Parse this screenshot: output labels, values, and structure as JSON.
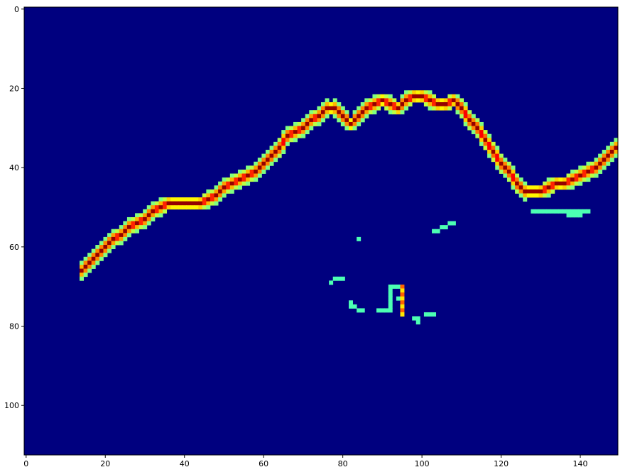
{
  "chart_data": {
    "type": "heatmap",
    "colormap": "jet",
    "background_color": "#00007f",
    "x_range": [
      -0.5,
      149.5
    ],
    "y_range": [
      112.5,
      -0.5
    ],
    "y_inverted": true,
    "x_ticks": [
      0,
      20,
      40,
      60,
      80,
      100,
      120,
      140
    ],
    "y_ticks": [
      0,
      20,
      40,
      60,
      80,
      100
    ],
    "x_tick_labels": [
      "0",
      "20",
      "40",
      "60",
      "80",
      "100",
      "120",
      "140"
    ],
    "y_tick_labels": [
      "0",
      "20",
      "40",
      "60",
      "80",
      "100"
    ],
    "grid": false,
    "colorbar": false,
    "main_ridge": [
      [
        14,
        66
      ],
      [
        16,
        64
      ],
      [
        18,
        62
      ],
      [
        20,
        60
      ],
      [
        22,
        58
      ],
      [
        24,
        57
      ],
      [
        26,
        55
      ],
      [
        28,
        54
      ],
      [
        30,
        53
      ],
      [
        32,
        51
      ],
      [
        34,
        50
      ],
      [
        36,
        49
      ],
      [
        38,
        49
      ],
      [
        40,
        49
      ],
      [
        42,
        49
      ],
      [
        44,
        49
      ],
      [
        46,
        48
      ],
      [
        48,
        47
      ],
      [
        50,
        45
      ],
      [
        52,
        44
      ],
      [
        54,
        43
      ],
      [
        56,
        42
      ],
      [
        58,
        41
      ],
      [
        60,
        39
      ],
      [
        62,
        37
      ],
      [
        64,
        35
      ],
      [
        66,
        32
      ],
      [
        68,
        31
      ],
      [
        70,
        30
      ],
      [
        72,
        28
      ],
      [
        74,
        27
      ],
      [
        76,
        25
      ],
      [
        78,
        25
      ],
      [
        80,
        27
      ],
      [
        82,
        29
      ],
      [
        84,
        27
      ],
      [
        86,
        25
      ],
      [
        88,
        24
      ],
      [
        90,
        23
      ],
      [
        92,
        24
      ],
      [
        94,
        25
      ],
      [
        96,
        23
      ],
      [
        98,
        22
      ],
      [
        100,
        22
      ],
      [
        102,
        23
      ],
      [
        104,
        24
      ],
      [
        106,
        24
      ],
      [
        108,
        23
      ],
      [
        110,
        25
      ],
      [
        112,
        28
      ],
      [
        114,
        30
      ],
      [
        116,
        33
      ],
      [
        118,
        36
      ],
      [
        120,
        39
      ],
      [
        122,
        41
      ],
      [
        124,
        44
      ],
      [
        126,
        46
      ],
      [
        128,
        46
      ],
      [
        130,
        46
      ],
      [
        132,
        45
      ],
      [
        134,
        44
      ],
      [
        136,
        44
      ],
      [
        138,
        43
      ],
      [
        140,
        42
      ],
      [
        142,
        41
      ],
      [
        144,
        40
      ],
      [
        146,
        38
      ],
      [
        148,
        36
      ],
      [
        149,
        35
      ]
    ],
    "fragments": [
      {
        "x": 128,
        "y": 51,
        "w": 9,
        "h": 1
      },
      {
        "x": 137,
        "y": 51,
        "w": 4,
        "h": 2
      },
      {
        "x": 141,
        "y": 51,
        "w": 2,
        "h": 1
      },
      {
        "x": 103,
        "y": 56,
        "w": 2,
        "h": 1
      },
      {
        "x": 105,
        "y": 55,
        "w": 2,
        "h": 1
      },
      {
        "x": 107,
        "y": 54,
        "w": 2,
        "h": 1
      },
      {
        "x": 84,
        "y": 58,
        "w": 1,
        "h": 1
      },
      {
        "x": 78,
        "y": 68,
        "w": 3,
        "h": 1
      },
      {
        "x": 77,
        "y": 69,
        "w": 1,
        "h": 1
      },
      {
        "x": 82,
        "y": 74,
        "w": 1,
        "h": 2
      },
      {
        "x": 83,
        "y": 75,
        "w": 1,
        "h": 1
      },
      {
        "x": 84,
        "y": 76,
        "w": 2,
        "h": 1
      },
      {
        "x": 89,
        "y": 76,
        "w": 3,
        "h": 1
      },
      {
        "x": 92,
        "y": 70,
        "w": 1,
        "h": 7
      },
      {
        "x": 93,
        "y": 70,
        "w": 3,
        "h": 1
      },
      {
        "x": 94,
        "y": 73,
        "w": 1,
        "h": 1
      },
      {
        "x": 98,
        "y": 78,
        "w": 2,
        "h": 1
      },
      {
        "x": 99,
        "y": 79,
        "w": 1,
        "h": 1
      },
      {
        "x": 101,
        "y": 77,
        "w": 2,
        "h": 1
      },
      {
        "x": 103,
        "y": 77,
        "w": 1,
        "h": 1
      }
    ],
    "fragment_value": 0.45,
    "hot_fragment": {
      "x": 95,
      "y": 70,
      "w": 1,
      "h": 8
    }
  }
}
